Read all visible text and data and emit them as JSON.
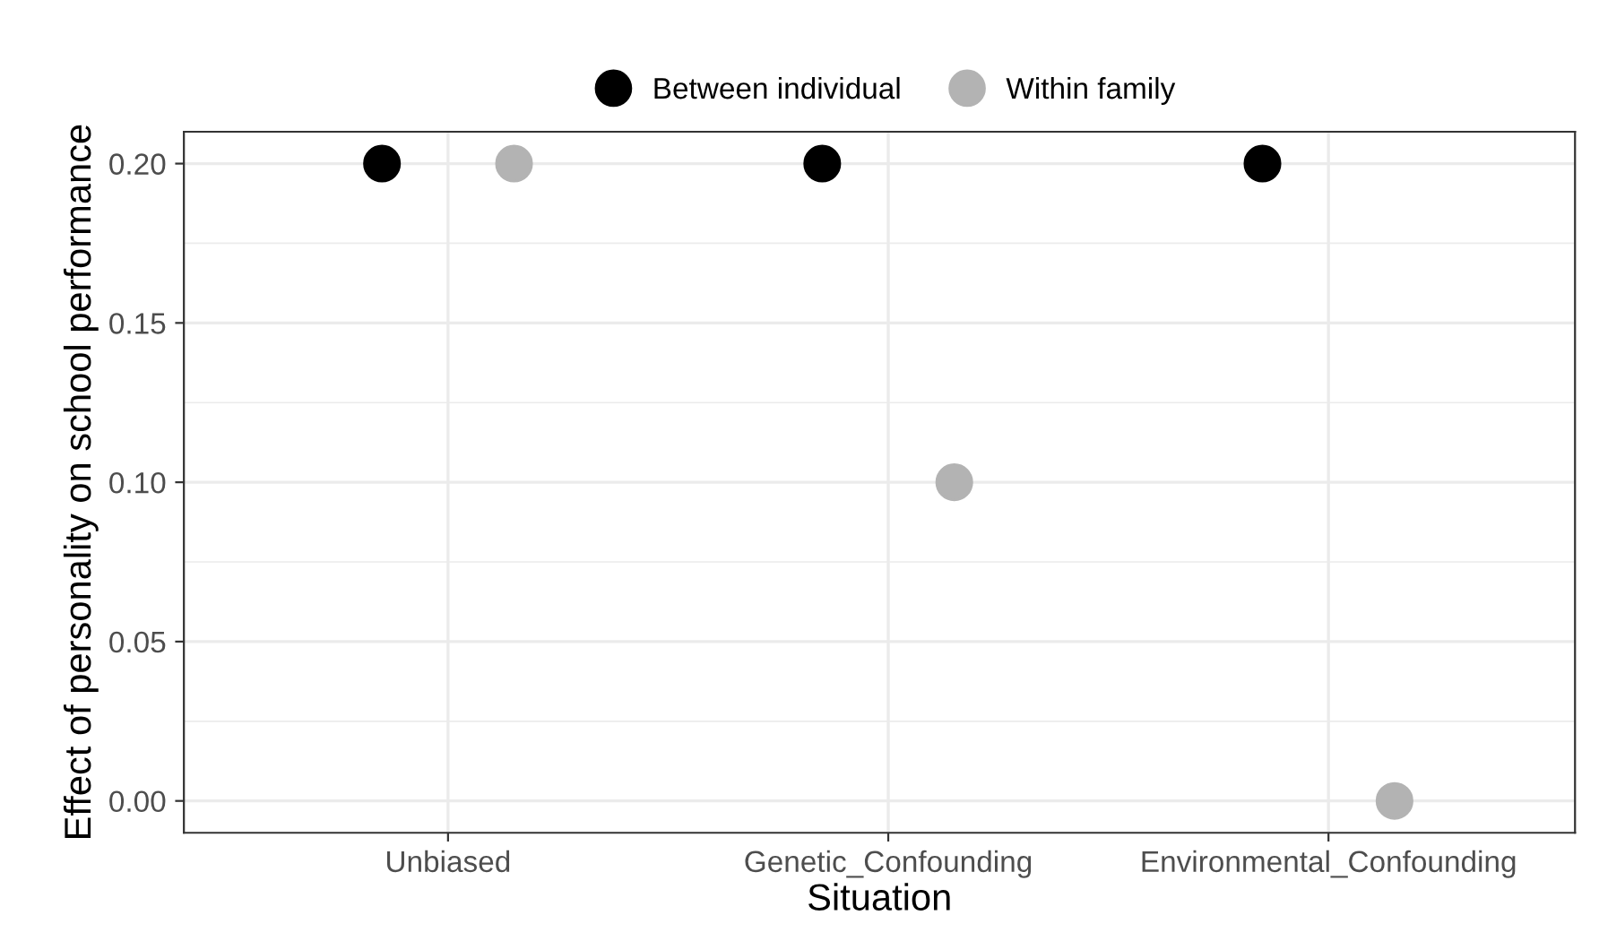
{
  "chart_data": {
    "type": "scatter",
    "xlabel": "Situation",
    "ylabel": "Effect of personality on school performance",
    "categories": [
      "Unbiased",
      "Genetic_Confounding",
      "Environmental_Confounding"
    ],
    "series": [
      {
        "name": "Between individual",
        "color": "#000000",
        "values": [
          0.2,
          0.2,
          0.2
        ]
      },
      {
        "name": "Within family",
        "color": "#b3b3b3",
        "values": [
          0.2,
          0.1,
          0.0
        ]
      }
    ],
    "ylim": [
      -0.01,
      0.21
    ],
    "yticks": [
      {
        "value": 0.0,
        "label": "0.00"
      },
      {
        "value": 0.05,
        "label": "0.05"
      },
      {
        "value": 0.1,
        "label": "0.10"
      },
      {
        "value": 0.15,
        "label": "0.15"
      },
      {
        "value": 0.2,
        "label": "0.20"
      }
    ],
    "grid": true,
    "legend": "top",
    "marker": "circle"
  }
}
